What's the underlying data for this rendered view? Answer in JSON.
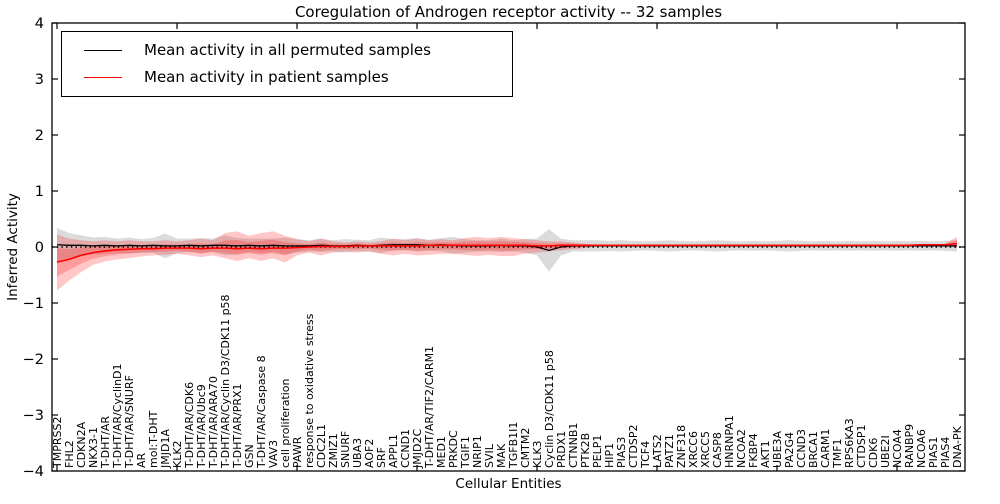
{
  "title": "Coregulation of Androgen receptor activity -- 32 samples",
  "legend": {
    "items": [
      {
        "label": "Mean activity in all permuted samples",
        "color": "#000000"
      },
      {
        "label": "Mean activity in patient samples",
        "color": "#ff0000"
      }
    ]
  },
  "axes": {
    "ylabel": "Inferred Activity",
    "xlabel": "Cellular Entities",
    "yticks": [
      {
        "value": 4,
        "label": "4"
      },
      {
        "value": 3,
        "label": "3"
      },
      {
        "value": 2,
        "label": "2"
      },
      {
        "value": 1,
        "label": "1"
      },
      {
        "value": 0,
        "label": "0"
      },
      {
        "value": -1,
        "label": "−1"
      },
      {
        "value": -2,
        "label": "−2"
      },
      {
        "value": -3,
        "label": "−3"
      },
      {
        "value": -4,
        "label": "−4"
      }
    ],
    "x_major_tick_indices": [
      0,
      10,
      20,
      30,
      40,
      50,
      60,
      70
    ]
  },
  "chart_data": {
    "type": "line",
    "title": "Coregulation of Androgen receptor activity -- 32 samples",
    "xlabel": "Cellular Entities",
    "ylabel": "Inferred Activity",
    "ylim": [
      -4,
      4
    ],
    "grid": false,
    "legend_position": "upper left",
    "zero_line": {
      "style": "dotted",
      "color": "#000000",
      "y": 0
    },
    "categories": [
      "TMPRSS2",
      "FHL2",
      "CDKN2A",
      "NKX3-1",
      "T-DHT/AR",
      "T-DHT/AR/CyclinD1",
      "T-DHT/AR/SNURF",
      "AR",
      "mol:T-DHT",
      "JMJD1A",
      "KLK2",
      "T-DHT/AR/CDK6",
      "T-DHT/AR/Ubc9",
      "T-DHT/AR/ARA70",
      "T-DHT/AR/Cyclin D3/CDK11 p58",
      "T-DHT/AR/PRX1",
      "GSN",
      "T-DHT/AR/Caspase 8",
      "VAV3",
      "cell proliferation",
      "PAWR",
      "response to oxidative stress",
      "CDC2L1",
      "ZMIZ1",
      "SNURF",
      "UBA3",
      "AOF2",
      "SRF",
      "APPL1",
      "CCND1",
      "JMJD2C",
      "T-DHT/AR/TIF2/CARM1",
      "MED1",
      "PRKDC",
      "TGIF1",
      "NRIP1",
      "SVIL",
      "MAK",
      "TGFB1I1",
      "CMTM2",
      "KLK3",
      "Cyclin D3/CDK11 p58",
      "PRDX1",
      "CTNNB1",
      "PTK2B",
      "PELP1",
      "HIP1",
      "PIAS3",
      "CTDSP2",
      "TCF4",
      "LATS2",
      "PATZ1",
      "ZNF318",
      "XRCC6",
      "XRCC5",
      "CASP8",
      "HNRNPA1",
      "NCOA2",
      "FKBP4",
      "AKT1",
      "UBE3A",
      "PA2G4",
      "CCND3",
      "BRCA1",
      "CARM1",
      "TMF1",
      "RPS6KA3",
      "CTDSP1",
      "CDK6",
      "UBE2I",
      "NCOA4",
      "RANBP9",
      "NCOA6",
      "PIAS1",
      "PIAS4",
      "DNA-PK"
    ],
    "series": [
      {
        "name": "Mean activity in all permuted samples",
        "color": "#000000",
        "values": [
          0.04,
          0.03,
          0.03,
          0.02,
          0.03,
          0.02,
          0.03,
          0.02,
          0.03,
          0.02,
          0.02,
          0.03,
          0.02,
          0.03,
          0.03,
          0.02,
          0.03,
          0.02,
          0.03,
          0.02,
          0.02,
          0.02,
          0.03,
          0.02,
          0.02,
          0.03,
          0.02,
          0.03,
          0.04,
          0.04,
          0.04,
          0.03,
          0.04,
          0.03,
          0.02,
          0.02,
          0.02,
          0.03,
          0.02,
          0.02,
          0.0,
          -0.06,
          0.0,
          0.02,
          0.02,
          0.02,
          0.02,
          0.02,
          0.02,
          0.02,
          0.02,
          0.02,
          0.02,
          0.02,
          0.02,
          0.02,
          0.02,
          0.02,
          0.02,
          0.02,
          0.02,
          0.02,
          0.02,
          0.02,
          0.02,
          0.02,
          0.02,
          0.02,
          0.02,
          0.02,
          0.02,
          0.02,
          0.02,
          0.02,
          0.02,
          0.02
        ]
      },
      {
        "name": "Mean activity in patient samples",
        "color": "#ff0000",
        "values": [
          -0.27,
          -0.22,
          -0.15,
          -0.1,
          -0.07,
          -0.05,
          -0.04,
          -0.03,
          -0.03,
          -0.02,
          -0.02,
          -0.02,
          -0.03,
          -0.02,
          -0.02,
          -0.03,
          -0.02,
          -0.03,
          -0.02,
          -0.02,
          -0.01,
          0.0,
          0.01,
          0.01,
          0.01,
          0.02,
          0.02,
          0.02,
          0.02,
          0.02,
          0.02,
          0.03,
          0.03,
          0.03,
          0.03,
          0.03,
          0.03,
          0.03,
          0.03,
          0.03,
          0.02,
          0.02,
          0.03,
          0.03,
          0.03,
          0.03,
          0.03,
          0.03,
          0.03,
          0.03,
          0.03,
          0.03,
          0.03,
          0.03,
          0.03,
          0.03,
          0.03,
          0.03,
          0.03,
          0.03,
          0.03,
          0.03,
          0.03,
          0.03,
          0.03,
          0.03,
          0.03,
          0.03,
          0.03,
          0.03,
          0.03,
          0.03,
          0.04,
          0.04,
          0.04,
          0.06
        ]
      }
    ],
    "bands": [
      {
        "name": "permuted-samples-range",
        "color": "#000000",
        "opacity": 0.14,
        "center_series": "Mean activity in all permuted samples",
        "halfwidth": [
          0.3,
          0.22,
          0.18,
          0.15,
          0.15,
          0.13,
          0.14,
          0.12,
          0.13,
          0.22,
          0.13,
          0.12,
          0.14,
          0.12,
          0.18,
          0.14,
          0.12,
          0.13,
          0.12,
          0.15,
          0.12,
          0.1,
          0.12,
          0.1,
          0.12,
          0.1,
          0.1,
          0.14,
          0.1,
          0.1,
          0.12,
          0.1,
          0.12,
          0.15,
          0.12,
          0.1,
          0.1,
          0.12,
          0.1,
          0.12,
          0.15,
          0.38,
          0.15,
          0.1,
          0.1,
          0.1,
          0.09,
          0.1,
          0.09,
          0.08,
          0.09,
          0.1,
          0.09,
          0.08,
          0.09,
          0.1,
          0.09,
          0.08,
          0.09,
          0.08,
          0.09,
          0.1,
          0.09,
          0.08,
          0.09,
          0.08,
          0.09,
          0.08,
          0.09,
          0.08,
          0.09,
          0.08,
          0.09,
          0.08,
          0.09,
          0.1
        ]
      },
      {
        "name": "patient-samples-range",
        "color": "#ff0000",
        "opacity": 0.22,
        "upper": [
          0.22,
          0.15,
          0.12,
          0.1,
          0.12,
          0.1,
          0.12,
          0.1,
          0.1,
          0.12,
          0.1,
          0.12,
          0.15,
          0.12,
          0.25,
          0.28,
          0.2,
          0.25,
          0.28,
          0.2,
          0.14,
          0.1,
          0.15,
          0.1,
          0.08,
          0.1,
          0.08,
          0.1,
          0.15,
          0.12,
          0.15,
          0.12,
          0.14,
          0.12,
          0.16,
          0.18,
          0.16,
          0.18,
          0.16,
          0.14,
          0.12,
          0.1,
          0.1,
          0.08,
          0.06,
          0.04,
          0.03,
          0.03,
          0.03,
          0.03,
          0.03,
          0.03,
          0.03,
          0.03,
          0.03,
          0.03,
          0.03,
          0.03,
          0.03,
          0.03,
          0.03,
          0.03,
          0.03,
          0.03,
          0.03,
          0.03,
          0.03,
          0.03,
          0.03,
          0.03,
          0.03,
          0.03,
          0.04,
          0.04,
          0.06,
          0.18
        ],
        "lower": [
          -0.78,
          -0.6,
          -0.45,
          -0.32,
          -0.26,
          -0.22,
          -0.2,
          -0.17,
          -0.15,
          -0.14,
          -0.12,
          -0.15,
          -0.18,
          -0.15,
          -0.2,
          -0.25,
          -0.2,
          -0.25,
          -0.2,
          -0.28,
          -0.15,
          -0.1,
          -0.15,
          -0.1,
          -0.08,
          -0.1,
          -0.08,
          -0.12,
          -0.15,
          -0.12,
          -0.15,
          -0.14,
          -0.12,
          -0.12,
          -0.14,
          -0.16,
          -0.14,
          -0.16,
          -0.16,
          -0.12,
          -0.1,
          -0.08,
          -0.06,
          -0.04,
          -0.02,
          0.02,
          0.03,
          0.03,
          0.03,
          0.03,
          0.03,
          0.03,
          0.03,
          0.03,
          0.03,
          0.03,
          0.03,
          0.03,
          0.03,
          0.03,
          0.03,
          0.03,
          0.03,
          0.03,
          0.03,
          0.03,
          0.03,
          0.03,
          0.03,
          0.03,
          0.03,
          0.03,
          0.04,
          0.04,
          0.02,
          -0.02
        ]
      }
    ]
  }
}
